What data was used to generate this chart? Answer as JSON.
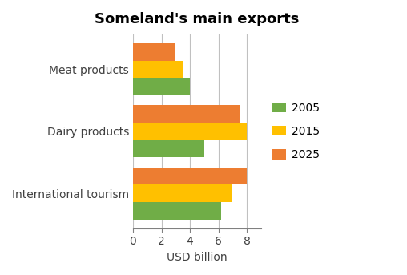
{
  "title": "Someland's main exports",
  "categories": [
    "Meat products",
    "Dairy products",
    "International tourism"
  ],
  "years": [
    "2025",
    "2015",
    "2005"
  ],
  "values": {
    "2005": [
      4.0,
      5.0,
      6.2
    ],
    "2015": [
      3.5,
      8.0,
      6.9
    ],
    "2025": [
      3.0,
      7.5,
      8.0
    ]
  },
  "colors": {
    "2005": "#70ad47",
    "2015": "#ffc000",
    "2025": "#ed7d31"
  },
  "xlabel": "USD billion",
  "xlim": [
    0,
    9
  ],
  "xticks": [
    0,
    2,
    4,
    6,
    8
  ],
  "background_color": "#ffffff",
  "bar_height": 0.28,
  "title_fontsize": 13,
  "axis_fontsize": 10,
  "tick_fontsize": 10
}
